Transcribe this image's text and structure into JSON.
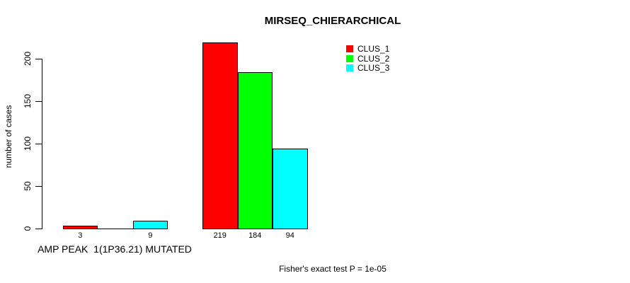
{
  "chart_data": {
    "type": "bar",
    "title": "MIRSEQ_CHIERARCHICAL",
    "ylabel": "number of cases",
    "xlabel": "AMP PEAK  1(1P36.21) MUTATED",
    "footnote": "Fisher's exact test P = 1e-05",
    "yticks": [
      0,
      50,
      100,
      150,
      200
    ],
    "ylim": [
      0,
      230
    ],
    "grid": false,
    "legend_position": "top-right",
    "background_color": "#ffffff",
    "bar_border_color": "#000000",
    "legend": [
      {
        "name": "CLUS_1",
        "color": "#ff0000"
      },
      {
        "name": "CLUS_2",
        "color": "#00ff00"
      },
      {
        "name": "CLUS_3",
        "color": "#00ffff"
      }
    ],
    "series": [
      {
        "name": "CLUS_1",
        "color": "#ff0000",
        "values": [
          3,
          219
        ]
      },
      {
        "name": "CLUS_2",
        "color": "#00ff00",
        "values": [
          0,
          184
        ]
      },
      {
        "name": "CLUS_3",
        "color": "#00ffff",
        "values": [
          9,
          94
        ]
      }
    ],
    "groups": [
      {
        "label": "AMP PEAK  1(1P36.21) MUTATED",
        "values": [
          3,
          0,
          9
        ],
        "value_labels": [
          "3",
          "",
          "9"
        ]
      },
      {
        "label": "",
        "values": [
          219,
          184,
          94
        ],
        "value_labels": [
          "219",
          "184",
          "94"
        ]
      }
    ]
  }
}
